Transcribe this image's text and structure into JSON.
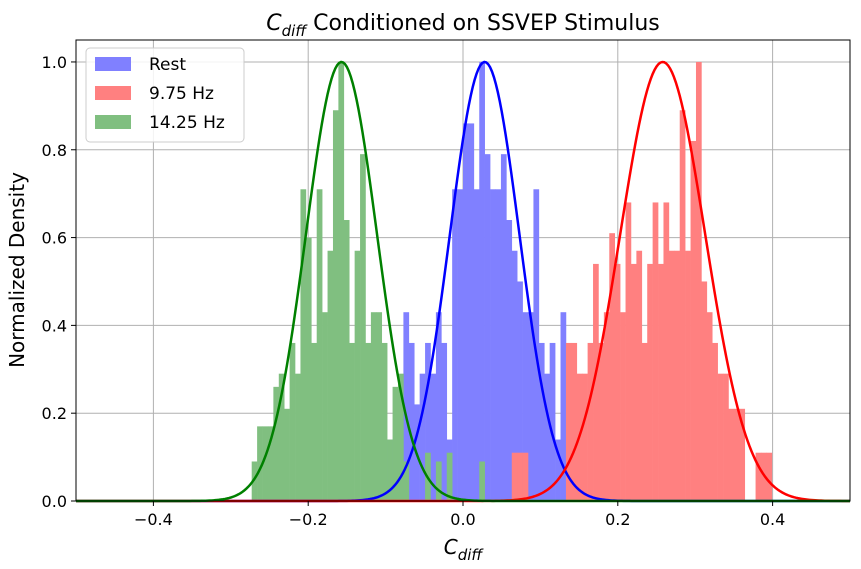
{
  "chart_data": {
    "type": "histogram+line",
    "title_symbol": "C",
    "title_subscript": "diff",
    "title_rest": " Conditioned on SSVEP Stimulus",
    "xlabel_symbol": "C",
    "xlabel_subscript": "diff",
    "ylabel": "Normalized Density",
    "xlim": [
      -0.5,
      0.5
    ],
    "ylim": [
      0,
      1.05
    ],
    "xticks": [
      -0.4,
      -0.2,
      0.0,
      0.2,
      0.4
    ],
    "xtick_labels": [
      "−0.4",
      "−0.2",
      "0.0",
      "0.2",
      "0.4"
    ],
    "yticks": [
      0.0,
      0.2,
      0.4,
      0.6,
      0.8,
      1.0
    ],
    "ytick_labels": [
      "0.0",
      "0.2",
      "0.4",
      "0.6",
      "0.8",
      "1.0"
    ],
    "grid": true,
    "legend_position": "top-left",
    "series": [
      {
        "name": "Rest",
        "color": "#0000ff",
        "hist_color": "#8080ff",
        "gaussian_mean": 0.028,
        "gaussian_peak": 1.0,
        "gaussian_sigma": 0.045,
        "bins": [
          [
            -0.098,
            -0.091,
            0.14
          ],
          [
            -0.091,
            -0.084,
            0.06
          ],
          [
            -0.084,
            -0.077,
            0.22
          ],
          [
            -0.077,
            -0.07,
            0.43
          ],
          [
            -0.07,
            -0.063,
            0.36
          ],
          [
            -0.063,
            -0.056,
            0.22
          ],
          [
            -0.056,
            -0.049,
            0.29
          ],
          [
            -0.049,
            -0.042,
            0.36
          ],
          [
            -0.042,
            -0.035,
            0.29
          ],
          [
            -0.035,
            -0.028,
            0.43
          ],
          [
            -0.028,
            -0.021,
            0.36
          ],
          [
            -0.021,
            -0.014,
            0.14
          ],
          [
            -0.014,
            -0.007,
            0.71
          ],
          [
            -0.007,
            0.0,
            0.71
          ],
          [
            0.0,
            0.007,
            0.86
          ],
          [
            0.007,
            0.014,
            0.86
          ],
          [
            0.014,
            0.021,
            0.71
          ],
          [
            0.021,
            0.028,
            1.0
          ],
          [
            0.028,
            0.035,
            0.79
          ],
          [
            0.035,
            0.042,
            0.71
          ],
          [
            0.042,
            0.049,
            0.71
          ],
          [
            0.049,
            0.056,
            0.79
          ],
          [
            0.056,
            0.063,
            0.64
          ],
          [
            0.063,
            0.07,
            0.57
          ],
          [
            0.07,
            0.077,
            0.5
          ],
          [
            0.077,
            0.084,
            0.43
          ],
          [
            0.084,
            0.091,
            0.43
          ],
          [
            0.091,
            0.098,
            0.71
          ],
          [
            0.098,
            0.105,
            0.36
          ],
          [
            0.105,
            0.112,
            0.29
          ],
          [
            0.112,
            0.119,
            0.36
          ],
          [
            0.119,
            0.126,
            0.14
          ],
          [
            0.126,
            0.133,
            0.43
          ]
        ]
      },
      {
        "name": "9.75 Hz",
        "color": "#ff0000",
        "hist_color": "#ff8080",
        "gaussian_mean": 0.258,
        "gaussian_peak": 1.0,
        "gaussian_sigma": 0.055,
        "bins": [
          [
            0.063,
            0.07,
            0.11
          ],
          [
            0.07,
            0.077,
            0.11
          ],
          [
            0.077,
            0.084,
            0.11
          ],
          [
            0.133,
            0.14,
            0.36
          ],
          [
            0.14,
            0.147,
            0.36
          ],
          [
            0.147,
            0.154,
            0.29
          ],
          [
            0.154,
            0.161,
            0.29
          ],
          [
            0.161,
            0.168,
            0.36
          ],
          [
            0.168,
            0.175,
            0.54
          ],
          [
            0.175,
            0.182,
            0.36
          ],
          [
            0.182,
            0.189,
            0.43
          ],
          [
            0.189,
            0.196,
            0.61
          ],
          [
            0.196,
            0.203,
            0.54
          ],
          [
            0.203,
            0.21,
            0.43
          ],
          [
            0.21,
            0.217,
            0.68
          ],
          [
            0.217,
            0.224,
            0.54
          ],
          [
            0.224,
            0.231,
            0.57
          ],
          [
            0.231,
            0.238,
            0.36
          ],
          [
            0.238,
            0.245,
            0.54
          ],
          [
            0.245,
            0.252,
            0.68
          ],
          [
            0.252,
            0.259,
            0.54
          ],
          [
            0.259,
            0.266,
            0.68
          ],
          [
            0.266,
            0.273,
            0.57
          ],
          [
            0.273,
            0.28,
            0.57
          ],
          [
            0.28,
            0.287,
            0.89
          ],
          [
            0.287,
            0.294,
            0.57
          ],
          [
            0.294,
            0.301,
            0.82
          ],
          [
            0.301,
            0.308,
            1.0
          ],
          [
            0.308,
            0.315,
            0.5
          ],
          [
            0.315,
            0.322,
            0.43
          ],
          [
            0.322,
            0.329,
            0.36
          ],
          [
            0.329,
            0.336,
            0.29
          ],
          [
            0.336,
            0.343,
            0.29
          ],
          [
            0.343,
            0.35,
            0.21
          ],
          [
            0.35,
            0.357,
            0.21
          ],
          [
            0.357,
            0.364,
            0.21
          ],
          [
            0.378,
            0.385,
            0.11
          ],
          [
            0.385,
            0.392,
            0.11
          ],
          [
            0.392,
            0.399,
            0.11
          ]
        ]
      },
      {
        "name": "14.25 Hz",
        "color": "#008000",
        "hist_color": "#80bf80",
        "gaussian_mean": -0.157,
        "gaussian_peak": 1.0,
        "gaussian_sigma": 0.046,
        "bins": [
          [
            -0.273,
            -0.266,
            0.09
          ],
          [
            -0.266,
            -0.259,
            0.17
          ],
          [
            -0.259,
            -0.252,
            0.17
          ],
          [
            -0.252,
            -0.245,
            0.17
          ],
          [
            -0.245,
            -0.238,
            0.26
          ],
          [
            -0.238,
            -0.231,
            0.29
          ],
          [
            -0.231,
            -0.224,
            0.21
          ],
          [
            -0.224,
            -0.217,
            0.36
          ],
          [
            -0.217,
            -0.21,
            0.29
          ],
          [
            -0.21,
            -0.203,
            0.71
          ],
          [
            -0.203,
            -0.196,
            0.6
          ],
          [
            -0.196,
            -0.189,
            0.36
          ],
          [
            -0.189,
            -0.182,
            0.71
          ],
          [
            -0.182,
            -0.175,
            0.43
          ],
          [
            -0.175,
            -0.168,
            0.57
          ],
          [
            -0.168,
            -0.161,
            0.89
          ],
          [
            -0.161,
            -0.154,
            1.0
          ],
          [
            -0.154,
            -0.147,
            0.64
          ],
          [
            -0.147,
            -0.14,
            0.36
          ],
          [
            -0.14,
            -0.133,
            0.57
          ],
          [
            -0.133,
            -0.126,
            0.79
          ],
          [
            -0.126,
            -0.119,
            0.36
          ],
          [
            -0.119,
            -0.112,
            0.43
          ],
          [
            -0.112,
            -0.105,
            0.43
          ],
          [
            -0.105,
            -0.098,
            0.36
          ],
          [
            -0.098,
            -0.091,
            0.14
          ],
          [
            -0.091,
            -0.084,
            0.26
          ],
          [
            -0.084,
            -0.077,
            0.29
          ],
          [
            -0.077,
            -0.07,
            0.09
          ],
          [
            -0.049,
            -0.042,
            0.11
          ],
          [
            -0.035,
            -0.028,
            0.09
          ],
          [
            -0.021,
            -0.014,
            0.11
          ],
          [
            0.021,
            0.028,
            0.09
          ]
        ]
      }
    ]
  }
}
